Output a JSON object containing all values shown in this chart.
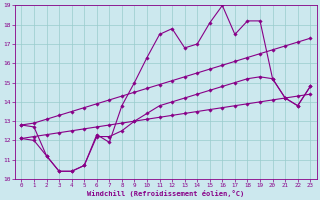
{
  "xlabel": "Windchill (Refroidissement éolien,°C)",
  "xlim": [
    -0.5,
    23.5
  ],
  "ylim": [
    10,
    19
  ],
  "xticks": [
    0,
    1,
    2,
    3,
    4,
    5,
    6,
    7,
    8,
    9,
    10,
    11,
    12,
    13,
    14,
    15,
    16,
    17,
    18,
    19,
    20,
    21,
    22,
    23
  ],
  "yticks": [
    10,
    11,
    12,
    13,
    14,
    15,
    16,
    17,
    18,
    19
  ],
  "bg_color": "#cce8ee",
  "line_color": "#880088",
  "grid_color": "#99cccc",
  "line_jagged_x": [
    0,
    1,
    2,
    3,
    4,
    5,
    6,
    7,
    8,
    9,
    10,
    11,
    12,
    13,
    14,
    15,
    16,
    17,
    18,
    19,
    20,
    21,
    22,
    23
  ],
  "line_jagged_y": [
    12.8,
    12.7,
    11.2,
    10.4,
    10.4,
    10.7,
    12.3,
    11.9,
    13.8,
    15.0,
    16.3,
    17.5,
    17.8,
    16.8,
    17.0,
    18.1,
    19.0,
    17.5,
    18.2,
    18.2,
    15.2,
    14.2,
    13.8,
    14.8
  ],
  "line_upper_diag_x": [
    0,
    1,
    2,
    3,
    4,
    5,
    6,
    7,
    8,
    9,
    10,
    11,
    12,
    13,
    14,
    15,
    16,
    17,
    18,
    19,
    20,
    21,
    22,
    23
  ],
  "line_upper_diag_y": [
    12.8,
    12.9,
    13.1,
    13.3,
    13.5,
    13.7,
    13.9,
    14.1,
    14.3,
    14.5,
    14.7,
    14.9,
    15.1,
    15.3,
    15.5,
    15.7,
    15.9,
    16.1,
    16.3,
    16.5,
    16.7,
    16.9,
    17.1,
    17.3
  ],
  "line_lower_diag_x": [
    0,
    1,
    2,
    3,
    4,
    5,
    6,
    7,
    8,
    9,
    10,
    11,
    12,
    13,
    14,
    15,
    16,
    17,
    18,
    19,
    20,
    21,
    22,
    23
  ],
  "line_lower_diag_y": [
    12.1,
    12.2,
    12.3,
    12.4,
    12.5,
    12.6,
    12.7,
    12.8,
    12.9,
    13.0,
    13.1,
    13.2,
    13.3,
    13.4,
    13.5,
    13.6,
    13.7,
    13.8,
    13.9,
    14.0,
    14.1,
    14.2,
    14.3,
    14.4
  ],
  "line_bot_jagged_x": [
    0,
    1,
    2,
    3,
    4,
    5,
    6,
    7,
    8,
    9,
    10,
    11,
    12,
    13,
    14,
    15,
    16,
    17,
    18,
    19,
    20,
    21,
    22,
    23
  ],
  "line_bot_jagged_y": [
    12.1,
    12.0,
    11.2,
    10.4,
    10.4,
    10.7,
    12.2,
    12.2,
    12.5,
    13.0,
    13.4,
    13.8,
    14.0,
    14.2,
    14.4,
    14.6,
    14.8,
    15.0,
    15.2,
    15.3,
    15.2,
    14.2,
    13.8,
    14.8
  ],
  "marker": "D",
  "marker_size": 1.8,
  "linewidth": 0.8
}
